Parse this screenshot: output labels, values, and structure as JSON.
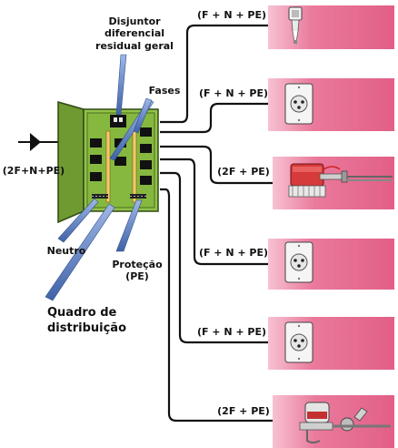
{
  "labels": {
    "disjuntor_line1": "Disjuntor",
    "disjuntor_line2": "diferencial",
    "disjuntor_line3": "residual geral",
    "fases": "Fases",
    "input": "(2F+N+PE)",
    "neutro": "Neutro",
    "protecao_line1": "Proteção",
    "protecao_line2": "(PE)",
    "quadro_line1": "Quadro de",
    "quadro_line2": "distribuição"
  },
  "circuits": [
    {
      "label": "(F + N + PE)",
      "device": "lamp-holder"
    },
    {
      "label": "(F + N + PE)",
      "device": "outlet"
    },
    {
      "label": "(2F + PE)",
      "device": "electric-shower"
    },
    {
      "label": "(F + N + PE)",
      "device": "outlet"
    },
    {
      "label": "(F + N + PE)",
      "device": "outlet"
    },
    {
      "label": "(2F + PE)",
      "device": "electric-faucet"
    }
  ],
  "colors": {
    "panel_fill": "#8fbf45",
    "panel_border": "#3d5a1a",
    "card_pink": "#e86a8e",
    "card_pink_light": "#f6b6c8",
    "wire": "#111111",
    "pointer_blue": "#5d7fbf"
  }
}
